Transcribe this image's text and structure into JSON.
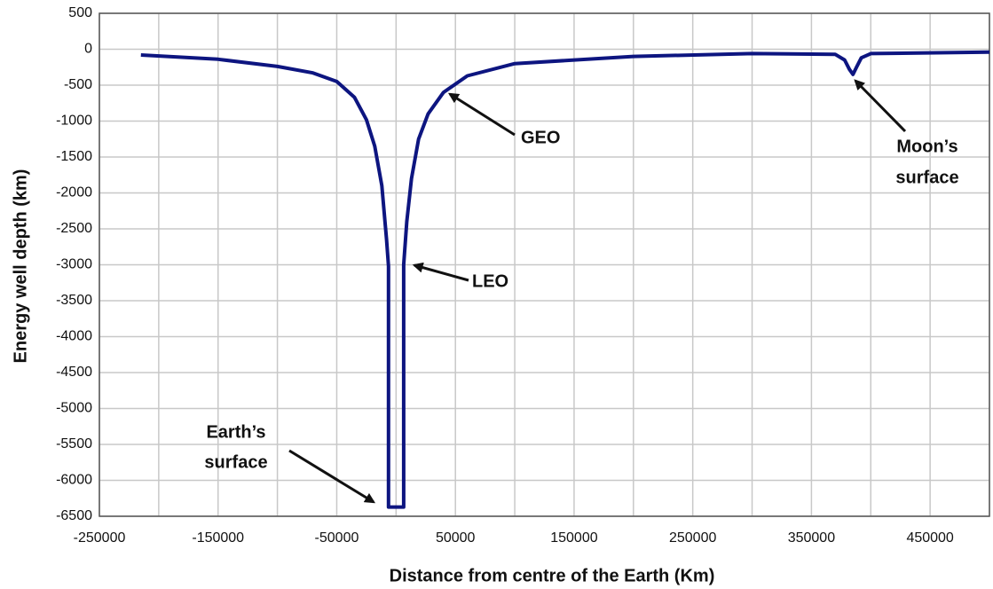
{
  "chart_data": {
    "type": "line",
    "xlabel": "Distance from centre of the Earth (Km)",
    "ylabel": "Energy well depth (km)",
    "x": [
      -215000,
      -150000,
      -100000,
      -70000,
      -50000,
      -35000,
      -25000,
      -18000,
      -12000,
      -8000,
      -6400,
      -6371,
      6371,
      6400,
      9000,
      13000,
      19000,
      27000,
      40000,
      60000,
      100000,
      200000,
      300000,
      370000,
      378000,
      382000,
      385000,
      388000,
      392000,
      400000,
      500000
    ],
    "series": [
      {
        "name": "Energy well depth",
        "color": "#0d1580",
        "values": [
          -80,
          -140,
          -240,
          -330,
          -450,
          -670,
          -980,
          -1350,
          -1900,
          -2650,
          -3020,
          -6371,
          -6371,
          -3000,
          -2400,
          -1800,
          -1250,
          -900,
          -600,
          -370,
          -200,
          -100,
          -60,
          -70,
          -150,
          -280,
          -350,
          -250,
          -120,
          -60,
          -40
        ]
      }
    ],
    "xlim": [
      -250000,
      500000
    ],
    "xticks": [
      -250000,
      -150000,
      -50000,
      50000,
      150000,
      250000,
      350000,
      450000
    ],
    "xgrid_minor": [
      -200000,
      -100000,
      0,
      100000,
      200000,
      300000,
      400000,
      500000
    ],
    "ylim": [
      -6500,
      500
    ],
    "yticks": [
      500,
      0,
      -500,
      -1000,
      -1500,
      -2000,
      -2500,
      -3000,
      -3500,
      -4000,
      -4500,
      -5000,
      -5500,
      -6000,
      -6500
    ],
    "grid": true,
    "annotations": [
      [
        "GEO"
      ],
      [
        "LEO"
      ],
      [
        "Moon’s",
        "surface"
      ],
      [
        "Earth’s",
        "surface"
      ]
    ]
  }
}
